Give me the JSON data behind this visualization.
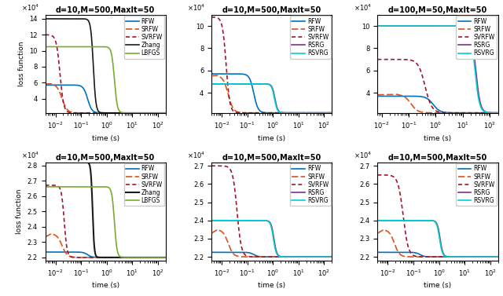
{
  "subplots": [
    {
      "title": "d=10,M=500,MaxIt=50",
      "ylim": [
        21800.0,
        145000.0
      ],
      "xlim": [
        0.004,
        200
      ],
      "has_lbfgs": true,
      "has_zhang": true,
      "has_rsrg": false,
      "has_rsvrg": false,
      "row": 0,
      "col": 0
    },
    {
      "title": "d=10,M=500,MaxIt=50",
      "ylim": [
        21800.0,
        110000.0
      ],
      "xlim": [
        0.004,
        200
      ],
      "has_lbfgs": false,
      "has_zhang": false,
      "has_rsrg": true,
      "has_rsvrg": true,
      "row": 0,
      "col": 1
    },
    {
      "title": "d=100,M=50,MaxIt=50",
      "ylim": [
        21800.0,
        110000.0
      ],
      "xlim": [
        0.007,
        200
      ],
      "has_lbfgs": false,
      "has_zhang": false,
      "has_rsrg": true,
      "has_rsvrg": true,
      "row": 0,
      "col": 2
    },
    {
      "title": "d=10,M=500,MaxIt=50",
      "ylim": [
        21800.0,
        28200.0
      ],
      "xlim": [
        0.004,
        200
      ],
      "has_lbfgs": true,
      "has_zhang": true,
      "has_rsrg": false,
      "has_rsvrg": false,
      "row": 1,
      "col": 0
    },
    {
      "title": "d=10,M=500,MaxIt=50",
      "ylim": [
        21800.0,
        27200.0
      ],
      "xlim": [
        0.004,
        200
      ],
      "has_lbfgs": false,
      "has_zhang": false,
      "has_rsrg": true,
      "has_rsvrg": true,
      "row": 1,
      "col": 1
    },
    {
      "title": "d=10,M=500,MaxIt=50",
      "ylim": [
        21800.0,
        27200.0
      ],
      "xlim": [
        0.004,
        200
      ],
      "has_lbfgs": false,
      "has_zhang": false,
      "has_rsrg": true,
      "has_rsvrg": true,
      "row": 1,
      "col": 2
    }
  ],
  "colors": {
    "RFW": "#0072BD",
    "SRFW": "#D95319",
    "SVRFW": "#A2142F",
    "LBFGS": "#77AC30",
    "Zhang": "#1a1a1a",
    "RSRG": "#7E2F8E",
    "RSVRG": "#00CED1"
  },
  "xlabel": "time (s)",
  "ylabel": "loss function"
}
